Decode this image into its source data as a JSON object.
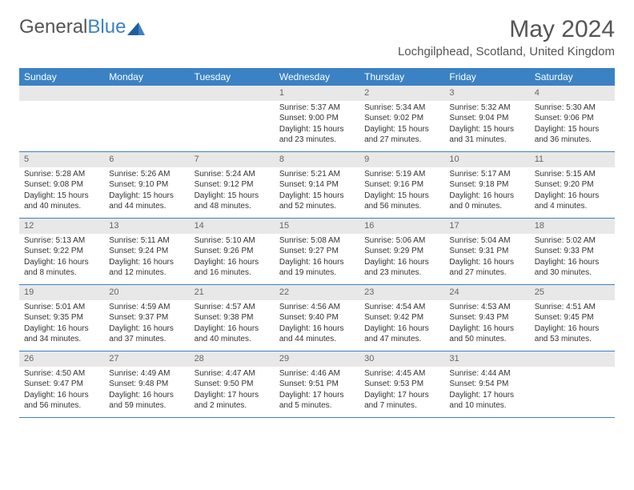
{
  "brand": {
    "part1": "General",
    "part2": "Blue"
  },
  "title": "May 2024",
  "location": "Lochgilphead, Scotland, United Kingdom",
  "colors": {
    "accent": "#3b82c4",
    "header_text": "#ffffff",
    "day_number_bg": "#e8e8e8",
    "day_number_color": "#666666",
    "body_text": "#333333",
    "title_color": "#555555",
    "background": "#ffffff"
  },
  "day_names": [
    "Sunday",
    "Monday",
    "Tuesday",
    "Wednesday",
    "Thursday",
    "Friday",
    "Saturday"
  ],
  "weeks": [
    [
      null,
      null,
      null,
      {
        "n": "1",
        "sr": "Sunrise: 5:37 AM",
        "ss": "Sunset: 9:00 PM",
        "d1": "Daylight: 15 hours",
        "d2": "and 23 minutes."
      },
      {
        "n": "2",
        "sr": "Sunrise: 5:34 AM",
        "ss": "Sunset: 9:02 PM",
        "d1": "Daylight: 15 hours",
        "d2": "and 27 minutes."
      },
      {
        "n": "3",
        "sr": "Sunrise: 5:32 AM",
        "ss": "Sunset: 9:04 PM",
        "d1": "Daylight: 15 hours",
        "d2": "and 31 minutes."
      },
      {
        "n": "4",
        "sr": "Sunrise: 5:30 AM",
        "ss": "Sunset: 9:06 PM",
        "d1": "Daylight: 15 hours",
        "d2": "and 36 minutes."
      }
    ],
    [
      {
        "n": "5",
        "sr": "Sunrise: 5:28 AM",
        "ss": "Sunset: 9:08 PM",
        "d1": "Daylight: 15 hours",
        "d2": "and 40 minutes."
      },
      {
        "n": "6",
        "sr": "Sunrise: 5:26 AM",
        "ss": "Sunset: 9:10 PM",
        "d1": "Daylight: 15 hours",
        "d2": "and 44 minutes."
      },
      {
        "n": "7",
        "sr": "Sunrise: 5:24 AM",
        "ss": "Sunset: 9:12 PM",
        "d1": "Daylight: 15 hours",
        "d2": "and 48 minutes."
      },
      {
        "n": "8",
        "sr": "Sunrise: 5:21 AM",
        "ss": "Sunset: 9:14 PM",
        "d1": "Daylight: 15 hours",
        "d2": "and 52 minutes."
      },
      {
        "n": "9",
        "sr": "Sunrise: 5:19 AM",
        "ss": "Sunset: 9:16 PM",
        "d1": "Daylight: 15 hours",
        "d2": "and 56 minutes."
      },
      {
        "n": "10",
        "sr": "Sunrise: 5:17 AM",
        "ss": "Sunset: 9:18 PM",
        "d1": "Daylight: 16 hours",
        "d2": "and 0 minutes."
      },
      {
        "n": "11",
        "sr": "Sunrise: 5:15 AM",
        "ss": "Sunset: 9:20 PM",
        "d1": "Daylight: 16 hours",
        "d2": "and 4 minutes."
      }
    ],
    [
      {
        "n": "12",
        "sr": "Sunrise: 5:13 AM",
        "ss": "Sunset: 9:22 PM",
        "d1": "Daylight: 16 hours",
        "d2": "and 8 minutes."
      },
      {
        "n": "13",
        "sr": "Sunrise: 5:11 AM",
        "ss": "Sunset: 9:24 PM",
        "d1": "Daylight: 16 hours",
        "d2": "and 12 minutes."
      },
      {
        "n": "14",
        "sr": "Sunrise: 5:10 AM",
        "ss": "Sunset: 9:26 PM",
        "d1": "Daylight: 16 hours",
        "d2": "and 16 minutes."
      },
      {
        "n": "15",
        "sr": "Sunrise: 5:08 AM",
        "ss": "Sunset: 9:27 PM",
        "d1": "Daylight: 16 hours",
        "d2": "and 19 minutes."
      },
      {
        "n": "16",
        "sr": "Sunrise: 5:06 AM",
        "ss": "Sunset: 9:29 PM",
        "d1": "Daylight: 16 hours",
        "d2": "and 23 minutes."
      },
      {
        "n": "17",
        "sr": "Sunrise: 5:04 AM",
        "ss": "Sunset: 9:31 PM",
        "d1": "Daylight: 16 hours",
        "d2": "and 27 minutes."
      },
      {
        "n": "18",
        "sr": "Sunrise: 5:02 AM",
        "ss": "Sunset: 9:33 PM",
        "d1": "Daylight: 16 hours",
        "d2": "and 30 minutes."
      }
    ],
    [
      {
        "n": "19",
        "sr": "Sunrise: 5:01 AM",
        "ss": "Sunset: 9:35 PM",
        "d1": "Daylight: 16 hours",
        "d2": "and 34 minutes."
      },
      {
        "n": "20",
        "sr": "Sunrise: 4:59 AM",
        "ss": "Sunset: 9:37 PM",
        "d1": "Daylight: 16 hours",
        "d2": "and 37 minutes."
      },
      {
        "n": "21",
        "sr": "Sunrise: 4:57 AM",
        "ss": "Sunset: 9:38 PM",
        "d1": "Daylight: 16 hours",
        "d2": "and 40 minutes."
      },
      {
        "n": "22",
        "sr": "Sunrise: 4:56 AM",
        "ss": "Sunset: 9:40 PM",
        "d1": "Daylight: 16 hours",
        "d2": "and 44 minutes."
      },
      {
        "n": "23",
        "sr": "Sunrise: 4:54 AM",
        "ss": "Sunset: 9:42 PM",
        "d1": "Daylight: 16 hours",
        "d2": "and 47 minutes."
      },
      {
        "n": "24",
        "sr": "Sunrise: 4:53 AM",
        "ss": "Sunset: 9:43 PM",
        "d1": "Daylight: 16 hours",
        "d2": "and 50 minutes."
      },
      {
        "n": "25",
        "sr": "Sunrise: 4:51 AM",
        "ss": "Sunset: 9:45 PM",
        "d1": "Daylight: 16 hours",
        "d2": "and 53 minutes."
      }
    ],
    [
      {
        "n": "26",
        "sr": "Sunrise: 4:50 AM",
        "ss": "Sunset: 9:47 PM",
        "d1": "Daylight: 16 hours",
        "d2": "and 56 minutes."
      },
      {
        "n": "27",
        "sr": "Sunrise: 4:49 AM",
        "ss": "Sunset: 9:48 PM",
        "d1": "Daylight: 16 hours",
        "d2": "and 59 minutes."
      },
      {
        "n": "28",
        "sr": "Sunrise: 4:47 AM",
        "ss": "Sunset: 9:50 PM",
        "d1": "Daylight: 17 hours",
        "d2": "and 2 minutes."
      },
      {
        "n": "29",
        "sr": "Sunrise: 4:46 AM",
        "ss": "Sunset: 9:51 PM",
        "d1": "Daylight: 17 hours",
        "d2": "and 5 minutes."
      },
      {
        "n": "30",
        "sr": "Sunrise: 4:45 AM",
        "ss": "Sunset: 9:53 PM",
        "d1": "Daylight: 17 hours",
        "d2": "and 7 minutes."
      },
      {
        "n": "31",
        "sr": "Sunrise: 4:44 AM",
        "ss": "Sunset: 9:54 PM",
        "d1": "Daylight: 17 hours",
        "d2": "and 10 minutes."
      },
      null
    ]
  ]
}
